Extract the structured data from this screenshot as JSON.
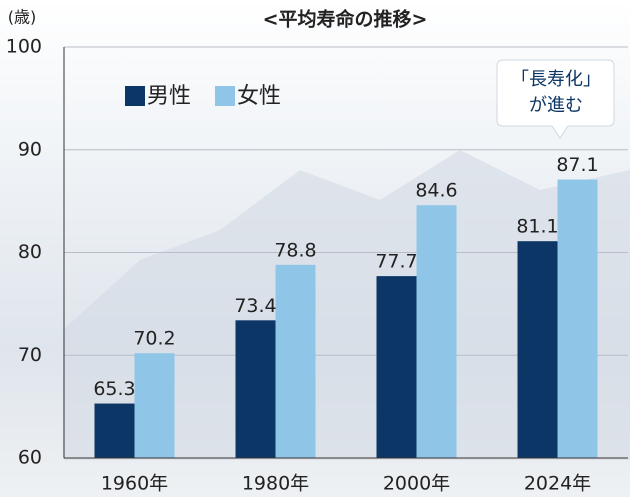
{
  "chart_data": {
    "type": "bar",
    "title": "<平均寿命の推移>",
    "y_unit": "(歳)",
    "categories": [
      "1960年",
      "1980年",
      "2000年",
      "2024年"
    ],
    "series": [
      {
        "name": "男性",
        "color": "#0c3665",
        "values": [
          65.3,
          73.4,
          77.7,
          81.1
        ]
      },
      {
        "name": "女性",
        "color": "#8fc6e8",
        "values": [
          70.2,
          78.8,
          84.6,
          87.1
        ]
      }
    ],
    "ylim": [
      60,
      100
    ],
    "yticks": [
      60,
      70,
      80,
      90,
      100
    ],
    "grid": true,
    "annotation": [
      "「長寿化」",
      "が進む"
    ]
  }
}
